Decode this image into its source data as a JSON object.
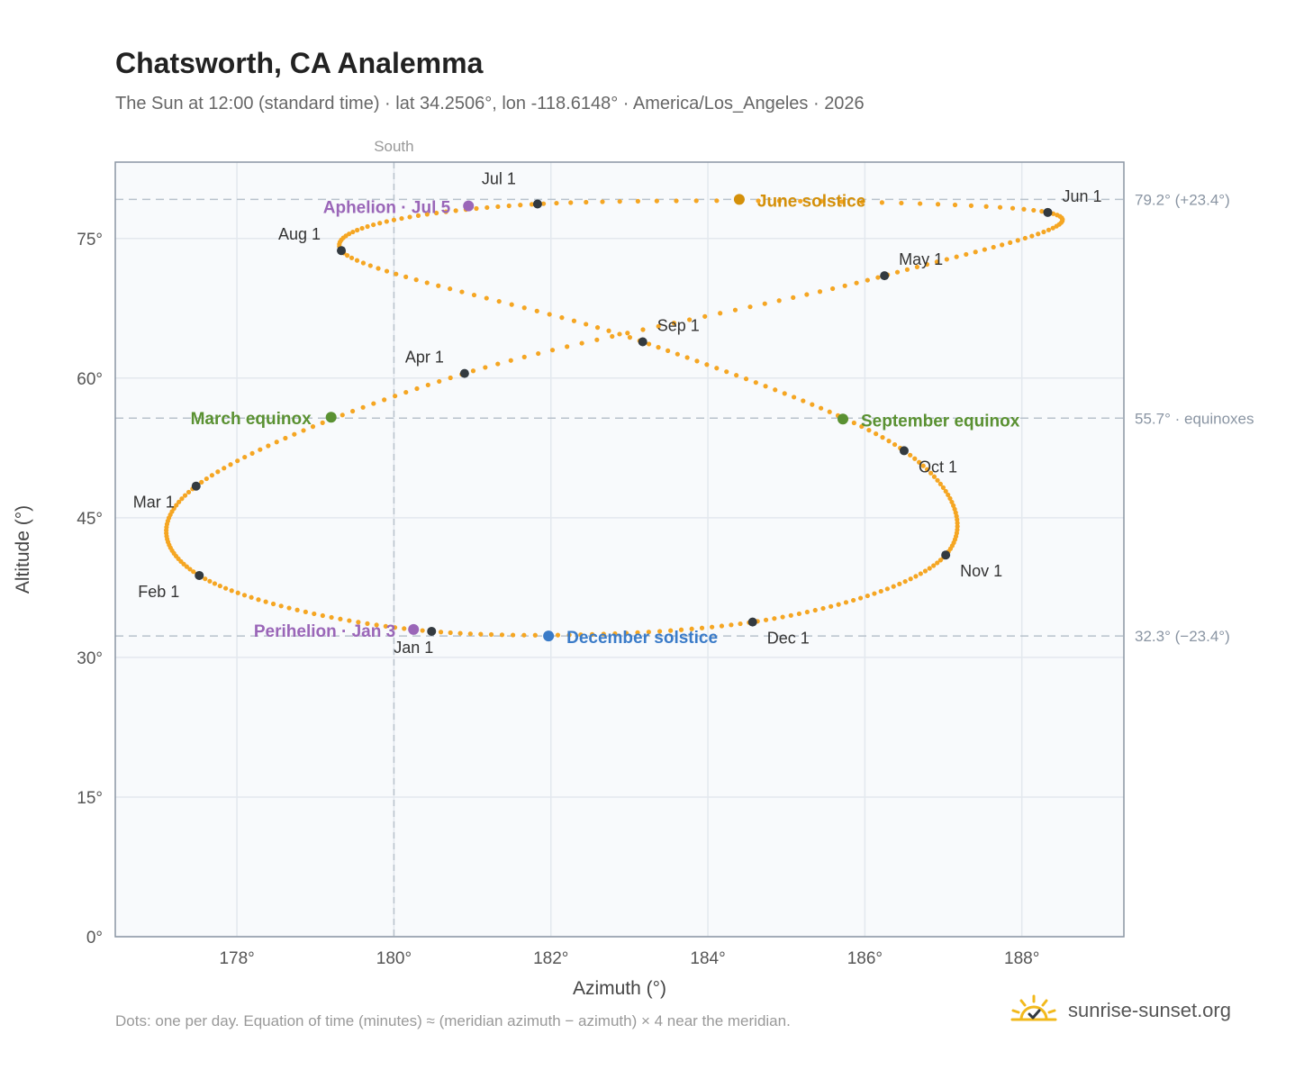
{
  "header": {
    "title": "Chatsworth, CA Analemma",
    "subtitle": "The Sun at 12:00 (standard time) · lat 34.2506°, lon -118.6148° · America/Los_Angeles · 2026"
  },
  "footer": {
    "note": "Dots: one per day. Equation of time (minutes) ≈ (meridian azimuth − azimuth) × 4 near the meridian.",
    "brand": "sunrise-sunset.org",
    "brand_icon": "sun-logo-icon"
  },
  "chart_data": {
    "type": "scatter",
    "xlabel": "Azimuth (°)",
    "ylabel": "Altitude (°)",
    "xlim": [
      176.45,
      189.3
    ],
    "ylim": [
      0,
      83.2
    ],
    "xticks": [
      178,
      180,
      182,
      184,
      186,
      188
    ],
    "xtick_labels": [
      "178°",
      "180°",
      "182°",
      "184°",
      "186°",
      "188°"
    ],
    "yticks": [
      0,
      15,
      30,
      45,
      60,
      75
    ],
    "ytick_labels": [
      "0°",
      "15°",
      "30°",
      "45°",
      "60°",
      "75°"
    ],
    "grid": true,
    "colors": {
      "dots": "#f5a623",
      "month": "#333a40",
      "solstice_june": "#d4900a",
      "solstice_december": "#3a7bc8",
      "equinox": "#5a9132",
      "apsis": "#9a66b8",
      "refline": "#b8c2cc",
      "frame": "#8a95a3",
      "plot_bg": "#f8fafc"
    },
    "south_line": {
      "azimuth": 180,
      "label": "South"
    },
    "reference_lines": [
      {
        "altitude": 79.2,
        "label": "79.2° (+23.4°)"
      },
      {
        "altitude": 55.7,
        "label": "55.7° · equinoxes"
      },
      {
        "altitude": 32.3,
        "label": "32.3° (−23.4°)"
      }
    ],
    "month_markers": [
      {
        "label": "Jan 1",
        "azimuth": 180.48,
        "altitude": 32.8
      },
      {
        "label": "Feb 1",
        "azimuth": 177.52,
        "altitude": 38.8
      },
      {
        "label": "Mar 1",
        "azimuth": 177.48,
        "altitude": 48.4
      },
      {
        "label": "Apr 1",
        "azimuth": 180.9,
        "altitude": 60.5
      },
      {
        "label": "May 1",
        "azimuth": 186.25,
        "altitude": 71.0
      },
      {
        "label": "Jun 1",
        "azimuth": 188.33,
        "altitude": 77.8
      },
      {
        "label": "Jul 1",
        "azimuth": 181.83,
        "altitude": 78.7
      },
      {
        "label": "Aug 1",
        "azimuth": 179.33,
        "altitude": 73.7
      },
      {
        "label": "Sep 1",
        "azimuth": 183.17,
        "altitude": 63.9
      },
      {
        "label": "Oct 1",
        "azimuth": 186.5,
        "altitude": 52.2
      },
      {
        "label": "Nov 1",
        "azimuth": 187.03,
        "altitude": 41.0
      },
      {
        "label": "Dec 1",
        "azimuth": 184.57,
        "altitude": 33.8
      }
    ],
    "events": [
      {
        "label": "June solstice",
        "azimuth": 184.4,
        "altitude": 79.2,
        "kind": "solstice_june"
      },
      {
        "label": "December solstice",
        "azimuth": 181.97,
        "altitude": 32.3,
        "kind": "solstice_december"
      },
      {
        "label": "March equinox",
        "azimuth": 179.2,
        "altitude": 55.8,
        "kind": "equinox"
      },
      {
        "label": "September equinox",
        "azimuth": 185.72,
        "altitude": 55.6,
        "kind": "equinox"
      },
      {
        "label": "Aphelion · Jul 5",
        "azimuth": 180.95,
        "altitude": 78.5,
        "kind": "apsis"
      },
      {
        "label": "Perihelion · Jan 3",
        "azimuth": 180.25,
        "altitude": 33.0,
        "kind": "apsis"
      }
    ],
    "year": 2026,
    "latitude": 34.2506,
    "longitude": -118.6148
  }
}
